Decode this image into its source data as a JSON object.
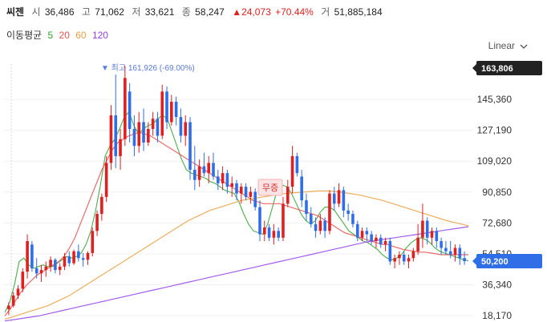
{
  "header": {
    "name": "씨젠",
    "open_label": "시",
    "open": "36,486",
    "high_label": "고",
    "high": "71,062",
    "low_label": "저",
    "low": "33,621",
    "close_label": "종",
    "close": "58,247",
    "change": "▲24,073",
    "change_pct": "+70.44%",
    "volume_label": "거",
    "volume": "51,885,184"
  },
  "ma_legend": {
    "label": "이동평균",
    "periods": [
      "5",
      "20",
      "60",
      "120"
    ],
    "colors": [
      "#2ea02e",
      "#e85050",
      "#e8a040",
      "#9040e8"
    ]
  },
  "scale_menu": {
    "label": "Linear"
  },
  "chart_data": {
    "type": "candlestick",
    "y_ticks": [
      18170,
      36340,
      54510,
      72680,
      90850,
      109020,
      127190,
      145360
    ],
    "y_tick_labels": [
      "18,170",
      "36,340",
      "54,510",
      "72,680",
      "90,850",
      "109,020",
      "127,190",
      "145,360"
    ],
    "ylim": [
      14000,
      168000
    ],
    "price_badges": [
      {
        "value": 163806,
        "label": "163,806",
        "color": "#222222"
      },
      {
        "value": 50200,
        "label": "50,200",
        "color": "#2f6ee6"
      }
    ],
    "annotations": [
      {
        "text": "▼ 최고 161,926 (-69.00%)",
        "value": 161926
      },
      {
        "text": "무증"
      }
    ],
    "up_color": "#e02020",
    "down_color": "#2f6ee6",
    "candles": [
      [
        22000,
        26000,
        18500,
        24000
      ],
      [
        24000,
        32000,
        23000,
        30000
      ],
      [
        30000,
        36000,
        28000,
        34000
      ],
      [
        34000,
        46000,
        32000,
        44000
      ],
      [
        44000,
        66000,
        40000,
        62000
      ],
      [
        60000,
        62000,
        44000,
        46000
      ],
      [
        46000,
        52000,
        40000,
        43000
      ],
      [
        43000,
        48000,
        38000,
        45000
      ],
      [
        45000,
        50000,
        41000,
        47000
      ],
      [
        47000,
        53000,
        44000,
        51000
      ],
      [
        51000,
        52000,
        43000,
        45000
      ],
      [
        45000,
        49000,
        42000,
        47000
      ],
      [
        47000,
        55000,
        45000,
        53000
      ],
      [
        53000,
        56000,
        47000,
        49000
      ],
      [
        49000,
        57000,
        48000,
        56000
      ],
      [
        56000,
        60000,
        50000,
        52000
      ],
      [
        52000,
        55000,
        47000,
        51000
      ],
      [
        51000,
        56000,
        48000,
        55000
      ],
      [
        55000,
        70000,
        53000,
        68000
      ],
      [
        68000,
        80000,
        65000,
        78000
      ],
      [
        78000,
        90000,
        74000,
        88000
      ],
      [
        88000,
        112000,
        85000,
        108000
      ],
      [
        108000,
        142000,
        104000,
        136000
      ],
      [
        136000,
        160000,
        105000,
        112000
      ],
      [
        112000,
        128000,
        104000,
        122000
      ],
      [
        122000,
        165000,
        118000,
        158000
      ],
      [
        150000,
        155000,
        120000,
        128000
      ],
      [
        128000,
        136000,
        112000,
        118000
      ],
      [
        118000,
        138000,
        114000,
        132000
      ],
      [
        132000,
        140000,
        115000,
        120000
      ],
      [
        120000,
        132000,
        118000,
        128000
      ],
      [
        128000,
        138000,
        124000,
        134000
      ],
      [
        134000,
        138000,
        120000,
        124000
      ],
      [
        124000,
        154000,
        122000,
        150000
      ],
      [
        150000,
        153000,
        128000,
        132000
      ],
      [
        132000,
        148000,
        130000,
        144000
      ],
      [
        144000,
        147000,
        130000,
        135000
      ],
      [
        135000,
        140000,
        120000,
        124000
      ],
      [
        124000,
        136000,
        118000,
        132000
      ],
      [
        132000,
        135000,
        98000,
        104000
      ],
      [
        104000,
        118000,
        92000,
        98000
      ],
      [
        98000,
        110000,
        94000,
        106000
      ],
      [
        106000,
        114000,
        100000,
        102000
      ],
      [
        102000,
        112000,
        96000,
        108000
      ],
      [
        108000,
        114000,
        98000,
        100000
      ],
      [
        100000,
        104000,
        92000,
        96000
      ],
      [
        96000,
        106000,
        92000,
        102000
      ],
      [
        102000,
        104000,
        90000,
        94000
      ],
      [
        94000,
        100000,
        88000,
        96000
      ],
      [
        96000,
        98000,
        86000,
        90000
      ],
      [
        90000,
        96000,
        84000,
        94000
      ],
      [
        94000,
        96000,
        86000,
        88000
      ],
      [
        88000,
        94000,
        84000,
        91000
      ],
      [
        91000,
        93000,
        80000,
        82000
      ],
      [
        82000,
        86000,
        62000,
        66000
      ],
      [
        66000,
        74000,
        62000,
        70000
      ],
      [
        70000,
        72000,
        62000,
        64000
      ],
      [
        64000,
        72000,
        60000,
        68000
      ],
      [
        68000,
        70000,
        62000,
        64000
      ],
      [
        64000,
        88000,
        62000,
        84000
      ],
      [
        84000,
        98000,
        82000,
        94000
      ],
      [
        94000,
        118000,
        90000,
        112000
      ],
      [
        112000,
        114000,
        100000,
        102000
      ],
      [
        100000,
        104000,
        82000,
        86000
      ],
      [
        86000,
        90000,
        74000,
        78000
      ],
      [
        78000,
        82000,
        70000,
        72000
      ],
      [
        72000,
        76000,
        64000,
        68000
      ],
      [
        68000,
        78000,
        66000,
        74000
      ],
      [
        74000,
        76000,
        64000,
        68000
      ],
      [
        68000,
        92000,
        66000,
        90000
      ],
      [
        90000,
        94000,
        80000,
        84000
      ],
      [
        84000,
        96000,
        82000,
        92000
      ],
      [
        92000,
        94000,
        76000,
        80000
      ],
      [
        80000,
        84000,
        74000,
        78000
      ],
      [
        78000,
        80000,
        70000,
        72000
      ],
      [
        72000,
        74000,
        62000,
        64000
      ],
      [
        64000,
        70000,
        62000,
        68000
      ],
      [
        68000,
        70000,
        62000,
        66000
      ],
      [
        66000,
        68000,
        60000,
        62000
      ],
      [
        62000,
        66000,
        58000,
        64000
      ],
      [
        64000,
        66000,
        58000,
        60000
      ],
      [
        60000,
        64000,
        56000,
        62000
      ],
      [
        62000,
        64000,
        48000,
        50000
      ],
      [
        50000,
        54000,
        46000,
        52000
      ],
      [
        52000,
        56000,
        48000,
        54000
      ],
      [
        54000,
        56000,
        48000,
        50000
      ],
      [
        50000,
        54000,
        46000,
        52000
      ],
      [
        52000,
        58000,
        50000,
        56000
      ],
      [
        56000,
        72000,
        54000,
        64000
      ],
      [
        64000,
        84000,
        58000,
        74000
      ],
      [
        74000,
        76000,
        60000,
        64000
      ],
      [
        64000,
        70000,
        60000,
        68000
      ],
      [
        68000,
        70000,
        58000,
        62000
      ],
      [
        62000,
        64000,
        54000,
        58000
      ],
      [
        58000,
        62000,
        54000,
        56000
      ],
      [
        56000,
        62000,
        52000,
        54000
      ],
      [
        54000,
        60000,
        50000,
        58000
      ],
      [
        58000,
        60000,
        48000,
        52000
      ],
      [
        52000,
        56000,
        48000,
        50200
      ]
    ],
    "ma_series": [
      {
        "period": "5",
        "values": [
          20000,
          26000,
          36000,
          50000,
          52000,
          48000,
          46000,
          47000,
          48000,
          47000,
          47000,
          49000,
          51000,
          53000,
          52000,
          53000,
          55000,
          60000,
          68000,
          80000,
          95000,
          112000,
          118000,
          122000,
          128000,
          135000,
          138000,
          130000,
          125000,
          128000,
          130000,
          131000,
          134000,
          136000,
          134000,
          126000,
          118000,
          110000,
          104000,
          102000,
          101000,
          100000,
          99000,
          97000,
          96000,
          94000,
          92000,
          91000,
          90000,
          85000,
          78000,
          72000,
          68000,
          67000,
          66000,
          72000,
          82000,
          92000,
          95000,
          94000,
          90000,
          84000,
          78000,
          74000,
          72000,
          74000,
          79000,
          82000,
          82000,
          80000,
          76000,
          72000,
          68000,
          66000,
          64000,
          62000,
          61000,
          59000,
          57000,
          54000,
          52000,
          51000,
          52000,
          54000,
          58000,
          61000,
          63000,
          64000,
          63000,
          61000,
          58000,
          56000,
          55000,
          54000,
          53000,
          52000,
          51000,
          50500
        ]
      },
      {
        "period": "20",
        "values": [
          18000,
          22000,
          27000,
          32000,
          36000,
          39000,
          42000,
          44000,
          46000,
          48000,
          50000,
          53000,
          58000,
          64000,
          72000,
          80000,
          88000,
          96000,
          104000,
          110000,
          116000,
          120000,
          122000,
          124000,
          125000,
          126000,
          125000,
          124000,
          122000,
          120000,
          118000,
          116000,
          114000,
          112000,
          110000,
          108000,
          106000,
          104000,
          102000,
          100000,
          98000,
          96000,
          94000,
          92000,
          90000,
          88000,
          86000,
          85000,
          84000,
          84000,
          84000,
          84000,
          83000,
          82000,
          81000,
          80000,
          79000,
          78000,
          77000,
          75000,
          73000,
          71000,
          69000,
          67000,
          66000,
          65000,
          64000,
          63000,
          62000,
          61000,
          60000,
          60000,
          59000,
          58000,
          57000,
          56500,
          56000,
          55500,
          55500,
          55000,
          54500,
          54000,
          54000,
          54000,
          54000,
          54000,
          54000
        ]
      },
      {
        "period": "60",
        "values": [
          16000,
          18000,
          20000,
          22000,
          24000,
          27000,
          30000,
          34000,
          38000,
          42000,
          46000,
          50000,
          54000,
          58000,
          62000,
          66000,
          70000,
          74000,
          77000,
          80000,
          82000,
          84000,
          86000,
          87000,
          88000,
          89000,
          90000,
          90500,
          91000,
          91500,
          91500,
          91000,
          90000,
          89000,
          87500,
          86000,
          84000,
          82000,
          80000,
          78000,
          76000,
          74000,
          72500,
          71000
        ]
      },
      {
        "period": "120",
        "values": [
          15000,
          16000,
          17000,
          18000,
          19500,
          21000,
          22500,
          24000,
          25500,
          27000,
          28500,
          30000,
          31500,
          33000,
          34500,
          36000,
          37500,
          39000,
          40500,
          42000,
          43500,
          45000,
          46500,
          48000,
          49500,
          51000,
          52500,
          54000,
          55500,
          57000,
          58500,
          60000,
          61500,
          62500,
          63500,
          64500,
          65500,
          66500,
          67500,
          68500,
          69500,
          70500
        ]
      }
    ]
  }
}
